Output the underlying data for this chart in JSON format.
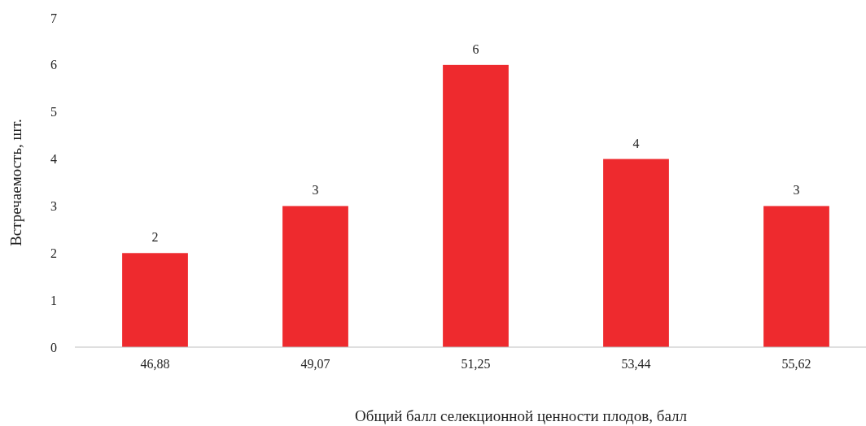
{
  "chart_data": {
    "type": "bar",
    "xlabel": "Общий балл селекционной ценности плодов, балл",
    "ylabel": "Встречаемость, шт.",
    "categories": [
      "46,88",
      "49,07",
      "51,25",
      "53,44",
      "55,62"
    ],
    "values": [
      2,
      3,
      6,
      4,
      3
    ],
    "color": "#ee2a2e",
    "ylim": [
      0,
      7
    ],
    "yticks": [
      0,
      1,
      2,
      3,
      4,
      5,
      6,
      7
    ],
    "grid": false,
    "data_labels": true
  }
}
